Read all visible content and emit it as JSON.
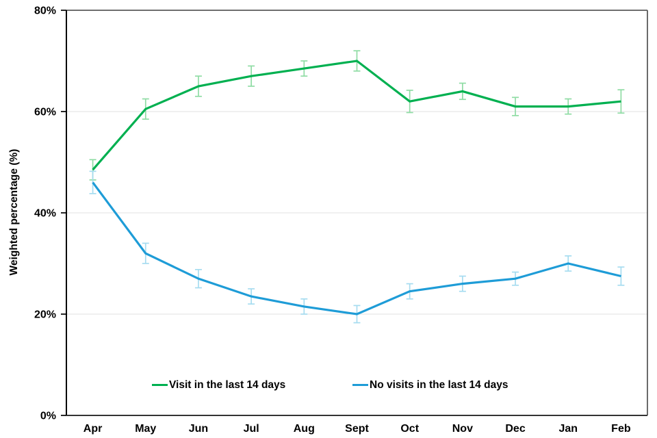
{
  "chart_data": {
    "type": "line",
    "title": "",
    "xlabel": "",
    "ylabel": "Weighted percentage (%)",
    "categories": [
      "Apr",
      "May",
      "Jun",
      "Jul",
      "Aug",
      "Sept",
      "Oct",
      "Nov",
      "Dec",
      "Jan",
      "Feb"
    ],
    "y_axis": {
      "min": 0,
      "max": 80,
      "tick_step": 20,
      "tick_values": [
        0,
        20,
        40,
        60,
        80
      ],
      "tick_labels": [
        "0%",
        "20%",
        "40%",
        "60%",
        "80%"
      ]
    },
    "ylim": [
      0,
      80
    ],
    "grid": "horizontal",
    "legend_position": "inside-bottom",
    "series": [
      {
        "name": "Visit in the last 14 days",
        "color": "#00B050",
        "error_color": "#8FDCA4",
        "values": [
          48.5,
          60.5,
          65,
          67,
          68.5,
          70,
          62,
          64,
          61,
          61,
          62
        ],
        "errors": [
          2,
          2,
          2,
          2,
          1.5,
          2,
          2.2,
          1.6,
          1.8,
          1.5,
          2.3
        ]
      },
      {
        "name": "No visits in the last 14 days",
        "color": "#1E9CD7",
        "error_color": "#A6DCF0",
        "values": [
          46,
          32,
          27,
          23.5,
          21.5,
          20,
          24.5,
          26,
          27,
          30,
          27.5
        ],
        "errors": [
          2.2,
          2,
          1.8,
          1.5,
          1.5,
          1.7,
          1.5,
          1.5,
          1.3,
          1.5,
          1.8
        ]
      }
    ],
    "colors": {
      "gridline": "#E8E8E8",
      "axis": "#000000",
      "bottom_axis": "#333333",
      "frame": "#595959",
      "tick_label": "#000000"
    }
  }
}
